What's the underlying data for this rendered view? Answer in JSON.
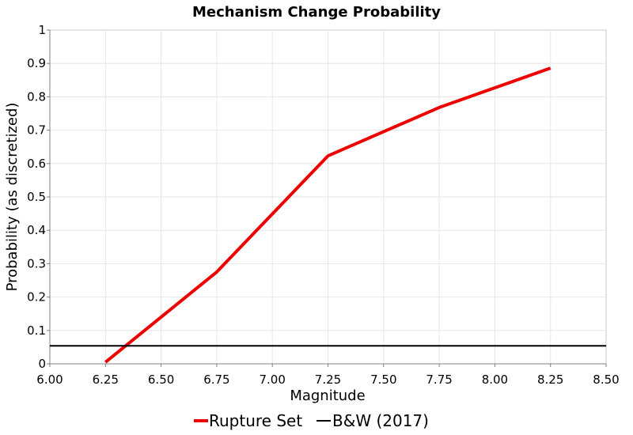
{
  "chart_data": {
    "type": "line",
    "title": "Mechanism Change Probability",
    "xlabel": "Magnitude",
    "ylabel": "Probability (as discretized)",
    "xlim": [
      6.0,
      8.5
    ],
    "ylim": [
      0,
      1
    ],
    "xticks": [
      "6.00",
      "6.25",
      "6.50",
      "6.75",
      "7.00",
      "7.25",
      "7.50",
      "7.75",
      "8.00",
      "8.25",
      "8.50"
    ],
    "yticks": [
      "0",
      "0.1",
      "0.2",
      "0.3",
      "0.4",
      "0.5",
      "0.6",
      "0.7",
      "0.8",
      "0.9",
      "1"
    ],
    "grid": true,
    "legend_position": "bottom",
    "series": [
      {
        "name": "Rupture Set",
        "color": "#ee0000",
        "x": [
          6.25,
          6.75,
          7.25,
          7.75,
          8.25
        ],
        "y": [
          0.005,
          0.275,
          0.623,
          0.768,
          0.886
        ]
      },
      {
        "name": "B&W (2017)",
        "color": "#000000",
        "x": [
          6.0,
          8.5
        ],
        "y": [
          0.054,
          0.054
        ]
      }
    ]
  }
}
